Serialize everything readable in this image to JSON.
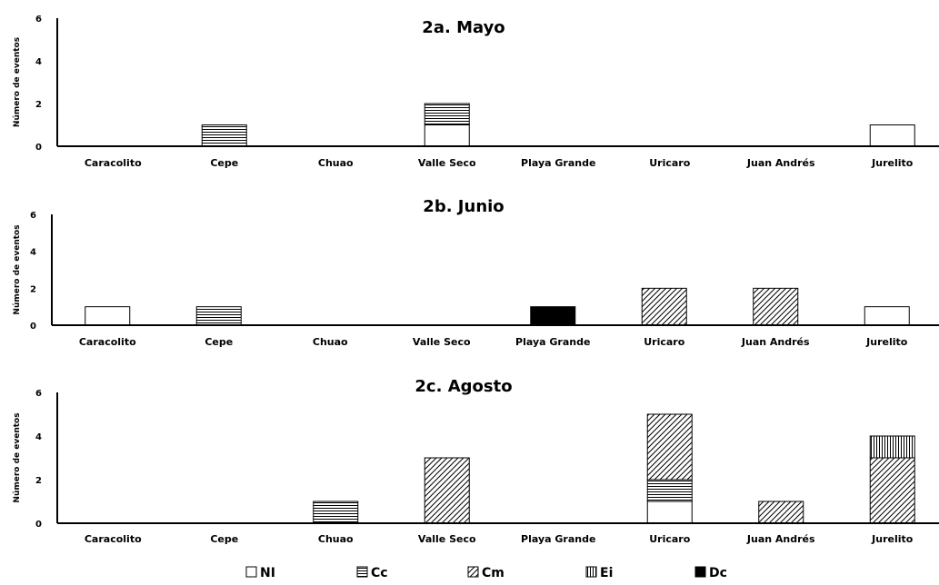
{
  "legend": [
    {
      "key": "NI",
      "label": "NI",
      "pattern": "none"
    },
    {
      "key": "Cc",
      "label": "Cc",
      "pattern": "horizontal"
    },
    {
      "key": "Cm",
      "label": "Cm",
      "pattern": "diagonal"
    },
    {
      "key": "Ei",
      "label": "Ei",
      "pattern": "vertical"
    },
    {
      "key": "Dc",
      "label": "Dc",
      "pattern": "solid"
    }
  ],
  "chart_data": [
    {
      "type": "bar",
      "stacked": true,
      "title": "2a. Mayo",
      "ylabel": "Número de eventos",
      "xlabel": "",
      "ylim": [
        0,
        6
      ],
      "yticks": [
        0,
        2,
        4,
        6
      ],
      "categories": [
        "Caracolito",
        "Cepe",
        "Chuao",
        "Valle Seco",
        "Playa Grande",
        "Uricaro",
        "Juan Andrés",
        "Jurelito"
      ],
      "series": [
        {
          "name": "NI",
          "values": [
            0,
            0,
            0,
            1,
            0,
            0,
            0,
            1
          ]
        },
        {
          "name": "Cc",
          "values": [
            0,
            1,
            0,
            1,
            0,
            0,
            0,
            0
          ]
        },
        {
          "name": "Cm",
          "values": [
            0,
            0,
            0,
            0,
            0,
            0,
            0,
            0
          ]
        },
        {
          "name": "Ei",
          "values": [
            0,
            0,
            0,
            0,
            0,
            0,
            0,
            0
          ]
        },
        {
          "name": "Dc",
          "values": [
            0,
            0,
            0,
            0,
            0,
            0,
            0,
            0
          ]
        }
      ]
    },
    {
      "type": "bar",
      "stacked": true,
      "title": "2b. Junio",
      "ylabel": "Número de eventos",
      "xlabel": "",
      "ylim": [
        0,
        6
      ],
      "yticks": [
        0,
        2,
        4,
        6
      ],
      "categories": [
        "Caracolito",
        "Cepe",
        "Chuao",
        "Valle Seco",
        "Playa Grande",
        "Uricaro",
        "Juan Andrés",
        "Jurelito"
      ],
      "series": [
        {
          "name": "NI",
          "values": [
            1,
            0,
            0,
            0,
            0,
            0,
            0,
            1
          ]
        },
        {
          "name": "Cc",
          "values": [
            0,
            1,
            0,
            0,
            0,
            0,
            0,
            0
          ]
        },
        {
          "name": "Cm",
          "values": [
            0,
            0,
            0,
            0,
            0,
            2,
            2,
            0
          ]
        },
        {
          "name": "Ei",
          "values": [
            0,
            0,
            0,
            0,
            0,
            0,
            0,
            0
          ]
        },
        {
          "name": "Dc",
          "values": [
            0,
            0,
            0,
            0,
            1,
            0,
            0,
            0
          ]
        }
      ]
    },
    {
      "type": "bar",
      "stacked": true,
      "title": "2c. Agosto",
      "ylabel": "Número de eventos",
      "xlabel": "",
      "ylim": [
        0,
        6
      ],
      "yticks": [
        0,
        2,
        4,
        6
      ],
      "categories": [
        "Caracolito",
        "Cepe",
        "Chuao",
        "Valle Seco",
        "Playa Grande",
        "Uricaro",
        "Juan Andrés",
        "Jurelito"
      ],
      "series": [
        {
          "name": "NI",
          "values": [
            0,
            0,
            0,
            0,
            0,
            1,
            0,
            0
          ]
        },
        {
          "name": "Cc",
          "values": [
            0,
            0,
            1,
            0,
            0,
            1,
            0,
            0
          ]
        },
        {
          "name": "Cm",
          "values": [
            0,
            0,
            0,
            3,
            0,
            3,
            1,
            3
          ]
        },
        {
          "name": "Ei",
          "values": [
            0,
            0,
            0,
            0,
            0,
            0,
            0,
            1
          ]
        },
        {
          "name": "Dc",
          "values": [
            0,
            0,
            0,
            0,
            0,
            0,
            0,
            0
          ]
        }
      ]
    }
  ]
}
